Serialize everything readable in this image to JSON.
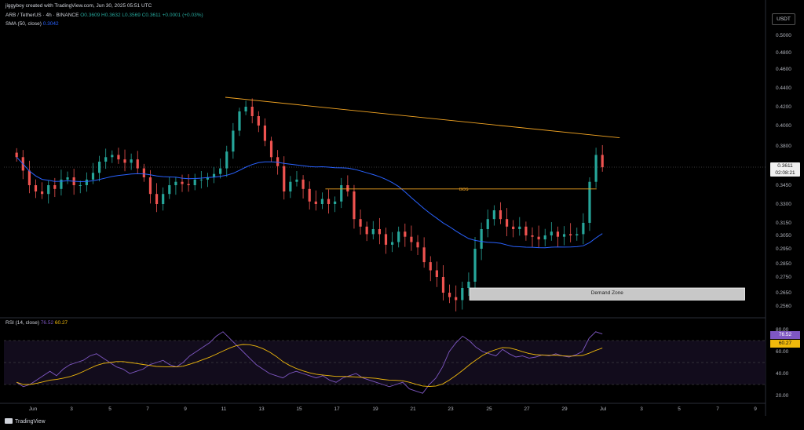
{
  "header": {
    "creator": "jiggyboy created with TradingView.com, Jun 30, 2025 05:51 UTC",
    "symbol": "ARB / TetherUS · 4h · BINANCE",
    "ohlc_o": "O0.3609",
    "ohlc_h": "H0.3632",
    "ohlc_l": "L0.3569",
    "ohlc_c": "C0.3611",
    "ohlc_chg": "+0.0001 (+0.03%)",
    "sma_label": "SMA (50, close)",
    "sma_value": "0.3042",
    "rsi_label": "RSI (14, close)",
    "rsi_value": "76.52",
    "rsi_sma_value": "60.27"
  },
  "currency_badge": "USDT",
  "last_price": {
    "value": "0.3611",
    "countdown": "02:08:21"
  },
  "annotations": {
    "bos": "BOS",
    "demand_zone": "Demand Zone"
  },
  "footer": {
    "brand": "TradingView"
  },
  "colors": {
    "up": "#26a69a",
    "down": "#ef5350",
    "sma": "#2962ff",
    "rsi": "#7e57c2",
    "rsi_ma": "#f0b90b",
    "trendline": "#f5a623"
  },
  "chart_data": [
    {
      "type": "candlestick",
      "title": "ARB / TetherUS · 4h · BINANCE",
      "y_ticks": [
        "0.5000",
        "0.4800",
        "0.4600",
        "0.4400",
        "0.4200",
        "0.4000",
        "0.3800",
        "0.3450",
        "0.3300",
        "0.3150",
        "0.3050",
        "0.2950",
        "0.2850",
        "0.2750",
        "0.2650",
        "0.2560"
      ],
      "x_ticks": [
        "Jun",
        "3",
        "5",
        "7",
        "9",
        "11",
        "13",
        "15",
        "17",
        "19",
        "21",
        "23",
        "25",
        "27",
        "29",
        "Jul",
        "3",
        "5",
        "7",
        "9"
      ],
      "series": [
        {
          "name": "SMA (50, close)",
          "last_value": 0.3042
        }
      ],
      "last_close": 0.3611,
      "trendline": {
        "from": {
          "date": "Jun 11",
          "price": 0.43
        },
        "to": {
          "date": "Jul 1",
          "price": 0.388
        }
      },
      "bos_level": 0.342,
      "demand_zone": [
        0.26,
        0.268
      ],
      "approx_closes": [
        0.37,
        0.358,
        0.345,
        0.34,
        0.338,
        0.345,
        0.342,
        0.35,
        0.352,
        0.345,
        0.345,
        0.35,
        0.356,
        0.366,
        0.37,
        0.372,
        0.368,
        0.365,
        0.368,
        0.36,
        0.352,
        0.338,
        0.33,
        0.338,
        0.345,
        0.348,
        0.346,
        0.345,
        0.35,
        0.35,
        0.352,
        0.355,
        0.36,
        0.375,
        0.395,
        0.415,
        0.42,
        0.41,
        0.4,
        0.385,
        0.37,
        0.362,
        0.34,
        0.348,
        0.35,
        0.342,
        0.332,
        0.33,
        0.334,
        0.33,
        0.332,
        0.345,
        0.34,
        0.318,
        0.312,
        0.306,
        0.31,
        0.306,
        0.298,
        0.3,
        0.308,
        0.304,
        0.3,
        0.296,
        0.286,
        0.28,
        0.275,
        0.265,
        0.262,
        0.26,
        0.268,
        0.272,
        0.295,
        0.31,
        0.318,
        0.325,
        0.318,
        0.312,
        0.31,
        0.312,
        0.305,
        0.304,
        0.302,
        0.305,
        0.308,
        0.304,
        0.306,
        0.305,
        0.306,
        0.315,
        0.348,
        0.372,
        0.361
      ]
    },
    {
      "type": "line",
      "title": "RSI (14, close)",
      "y_ticks": [
        "80.00",
        "60.00",
        "40.00",
        "20.00"
      ],
      "levels": [
        70,
        50,
        30
      ],
      "series": [
        {
          "name": "RSI",
          "last_value": 76.52,
          "values": [
            32,
            28,
            30,
            34,
            38,
            42,
            38,
            44,
            48,
            50,
            52,
            56,
            58,
            54,
            50,
            46,
            44,
            40,
            42,
            44,
            48,
            50,
            52,
            48,
            46,
            50,
            56,
            60,
            64,
            68,
            74,
            78,
            72,
            66,
            60,
            54,
            48,
            44,
            40,
            38,
            36,
            40,
            42,
            40,
            38,
            36,
            38,
            34,
            32,
            36,
            38,
            40,
            36,
            34,
            32,
            30,
            28,
            30,
            32,
            26,
            24,
            22,
            30,
            36,
            46,
            60,
            68,
            74,
            70,
            64,
            60,
            58,
            56,
            62,
            58,
            55,
            56,
            54,
            55,
            57,
            56,
            58,
            56,
            55,
            57,
            60,
            72,
            78,
            76
          ]
        },
        {
          "name": "RSI-based MA",
          "last_value": 60.27
        }
      ]
    }
  ]
}
